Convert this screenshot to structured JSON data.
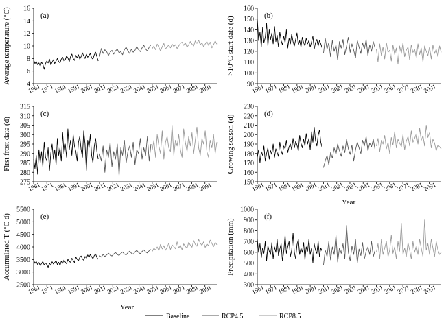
{
  "figure": {
    "x_title": "Year",
    "legend": [
      {
        "label": "Baseline",
        "color": "#000000"
      },
      {
        "label": "RCP4.5",
        "color": "#555555"
      },
      {
        "label": "RCP8.5",
        "color": "#999999"
      }
    ]
  },
  "chart_data": [
    {
      "type": "line",
      "panel_label": "(a)",
      "ylabel": "Average temperature (°C)",
      "xlabel": "",
      "x_tick_labels": [
        "1961",
        "1971",
        "1981",
        "1991",
        "2001",
        "2011",
        "2021",
        "2031",
        "2041",
        "2051",
        "2061",
        "2071",
        "2081",
        "2091"
      ],
      "y_ticks": [
        4,
        6,
        8,
        10,
        12,
        14,
        16
      ],
      "ylim": [
        4,
        16
      ],
      "xlim": [
        1961,
        2100
      ],
      "series": [
        {
          "name": "Baseline",
          "x_start": 1961,
          "x_end": 2010,
          "values": [
            7.8,
            7.2,
            7.5,
            7.0,
            7.3,
            6.8,
            7.4,
            7.1,
            6.3,
            7.2,
            7.6,
            7.3,
            7.9,
            7.0,
            7.4,
            7.8,
            7.2,
            7.6,
            8.0,
            7.5,
            7.3,
            7.9,
            8.2,
            7.6,
            7.8,
            8.4,
            8.1,
            7.5,
            8.3,
            8.7,
            8.0,
            7.7,
            8.5,
            8.1,
            8.6,
            7.9,
            8.3,
            8.9,
            8.4,
            8.0,
            8.7,
            8.2,
            8.5,
            8.8,
            8.1,
            7.9,
            8.6,
            9.0,
            8.3,
            7.6
          ]
        },
        {
          "name": "RCP4.5",
          "x_start": 2011,
          "x_end": 2050,
          "values": [
            8.3,
            9.6,
            8.8,
            9.4,
            9.1,
            8.5,
            9.0,
            9.3,
            8.7,
            9.2,
            9.5,
            8.9,
            9.1,
            8.6,
            9.4,
            9.8,
            9.2,
            8.8,
            9.5,
            9.0,
            9.3,
            9.9,
            9.4,
            9.1,
            9.7,
            10.1,
            9.5,
            9.2,
            9.8,
            10.2
          ]
        },
        {
          "name": "RCP8.5",
          "x_start": 2051,
          "x_end": 2100,
          "values": [
            9.6,
            10.0,
            9.4,
            10.3,
            9.8,
            9.2,
            9.9,
            10.4,
            9.5,
            9.9,
            10.1,
            9.7,
            10.3,
            9.9,
            10.2,
            9.6,
            10.0,
            10.4,
            10.6,
            10.1,
            10.5,
            9.8,
            10.2,
            10.7,
            10.3,
            10.0,
            10.8,
            10.4,
            10.9,
            10.2,
            10.5,
            9.9,
            10.3,
            10.7,
            10.1,
            10.6,
            9.7,
            10.2,
            10.8,
            10.3
          ]
        }
      ]
    },
    {
      "type": "line",
      "panel_label": "(b)",
      "ylabel": ">10°C start date (d)",
      "xlabel": "",
      "x_tick_labels": [
        "1961",
        "1971",
        "1981",
        "1991",
        "2001",
        "2011",
        "2021",
        "2031",
        "2041",
        "2051",
        "2061",
        "2071",
        "2081",
        "2091"
      ],
      "y_ticks": [
        90,
        100,
        110,
        120,
        130,
        140,
        150,
        160
      ],
      "ylim": [
        90,
        160
      ],
      "xlim": [
        1961,
        2100
      ],
      "series": [
        {
          "name": "Baseline",
          "x_start": 1961,
          "x_end": 2010,
          "values": [
            150,
            130,
            138,
            124,
            142,
            128,
            133,
            146,
            125,
            140,
            131,
            137,
            127,
            143,
            129,
            135,
            124,
            138,
            130,
            126,
            134,
            128,
            140,
            123,
            132,
            127,
            136,
            129,
            125,
            131,
            137,
            126,
            130,
            124,
            133,
            128,
            125,
            132,
            127,
            130,
            124,
            129,
            134,
            122,
            128,
            131,
            125,
            130,
            127,
            123
          ]
        },
        {
          "name": "RCP4.5",
          "x_start": 2011,
          "x_end": 2050,
          "values": [
            118,
            132,
            122,
            128,
            115,
            130,
            120,
            126,
            112,
            129,
            123,
            131,
            117,
            125,
            133,
            119,
            127,
            121,
            114,
            130,
            124,
            118,
            128,
            122,
            131,
            116,
            126,
            120,
            129,
            123
          ]
        },
        {
          "name": "RCP8.5",
          "x_start": 2051,
          "x_end": 2100,
          "values": [
            122,
            110,
            127,
            116,
            124,
            113,
            128,
            119,
            121,
            111,
            126,
            117,
            123,
            108,
            125,
            118,
            128,
            115,
            121,
            124,
            112,
            126,
            119,
            122,
            114,
            127,
            117,
            123,
            110,
            125,
            120,
            116,
            124,
            113,
            126,
            118,
            122,
            115,
            125,
            119
          ]
        }
      ]
    },
    {
      "type": "line",
      "panel_label": "(c)",
      "ylabel": "First frost date (d)",
      "xlabel": "",
      "x_tick_labels": [
        "1961",
        "1971",
        "1981",
        "1991",
        "2001",
        "2011",
        "2021",
        "2031",
        "2041",
        "2051",
        "2061",
        "2071",
        "2081",
        "2091"
      ],
      "y_ticks": [
        275,
        280,
        285,
        290,
        295,
        300,
        305,
        310,
        315
      ],
      "ylim": [
        275,
        315
      ],
      "xlim": [
        1961,
        2100
      ],
      "series": [
        {
          "name": "Baseline",
          "x_start": 1961,
          "x_end": 2010,
          "values": [
            287,
            282,
            289,
            279,
            292,
            285,
            291,
            283,
            296,
            288,
            286,
            293,
            281,
            290,
            295,
            287,
            292,
            284,
            298,
            289,
            293,
            286,
            301,
            290,
            295,
            288,
            303,
            292,
            297,
            289,
            300,
            294,
            291,
            286,
            296,
            299,
            292,
            288,
            302,
            295,
            281,
            297,
            293,
            300,
            289,
            285,
            294,
            298,
            291,
            287
          ]
        },
        {
          "name": "RCP4.5",
          "x_start": 2011,
          "x_end": 2050,
          "values": [
            290,
            286,
            294,
            280,
            292,
            288,
            296,
            283,
            291,
            287,
            295,
            278,
            293,
            289,
            297,
            285,
            291,
            294,
            288,
            296,
            284,
            292,
            290,
            298,
            287,
            293,
            289,
            299,
            286,
            295
          ]
        },
        {
          "name": "RCP8.5",
          "x_start": 2051,
          "x_end": 2100,
          "values": [
            292,
            297,
            288,
            300,
            294,
            290,
            302,
            287,
            296,
            299,
            293,
            291,
            305,
            289,
            297,
            294,
            300,
            292,
            288,
            303,
            296,
            291,
            299,
            294,
            301,
            290,
            297,
            304,
            293,
            289,
            298,
            295,
            302,
            291,
            288,
            297,
            293,
            300,
            290,
            296
          ]
        }
      ]
    },
    {
      "type": "line",
      "panel_label": "(d)",
      "ylabel": "Growing season (d)",
      "xlabel": "",
      "x_tick_labels": [
        "1961",
        "1971",
        "1981",
        "1991",
        "2001",
        "2011",
        "2021",
        "2031",
        "2041",
        "2051",
        "2061",
        "2071",
        "2081",
        "2091"
      ],
      "y_ticks": [
        150,
        160,
        170,
        180,
        190,
        200,
        210,
        220,
        230
      ],
      "ylim": [
        150,
        230
      ],
      "xlim": [
        1961,
        2100
      ],
      "series": [
        {
          "name": "Baseline",
          "x_start": 1961,
          "x_end": 2010,
          "values": [
            176,
            184,
            170,
            182,
            178,
            188,
            172,
            180,
            186,
            174,
            183,
            179,
            190,
            176,
            185,
            181,
            177,
            192,
            183,
            179,
            188,
            185,
            194,
            181,
            187,
            190,
            184,
            196,
            186,
            193,
            189,
            183,
            199,
            191,
            186,
            195,
            188,
            201,
            190,
            196,
            184,
            203,
            192,
            208,
            194,
            188,
            199,
            205,
            192,
            186
          ]
        },
        {
          "name": "RCP4.5",
          "x_start": 2011,
          "x_end": 2050,
          "values": [
            165,
            172,
            178,
            168,
            181,
            175,
            186,
            179,
            190,
            183,
            177,
            188,
            181,
            195,
            185,
            179,
            189,
            172,
            184,
            192,
            186,
            180,
            194,
            188,
            198,
            183,
            191,
            187,
            195,
            184
          ]
        },
        {
          "name": "RCP8.5",
          "x_start": 2051,
          "x_end": 2100,
          "values": [
            188,
            196,
            182,
            194,
            190,
            199,
            185,
            192,
            180,
            197,
            189,
            203,
            186,
            195,
            191,
            187,
            200,
            184,
            193,
            198,
            188,
            204,
            192,
            196,
            201,
            190,
            207,
            194,
            199,
            188,
            210,
            197,
            202,
            186,
            195,
            191,
            183,
            189,
            187,
            185
          ]
        }
      ]
    },
    {
      "type": "line",
      "panel_label": "(e)",
      "ylabel": "Accumulated T (°C d)",
      "xlabel": "",
      "x_tick_labels": [
        "1961",
        "1971",
        "1981",
        "1991",
        "2001",
        "2011",
        "2021",
        "2031",
        "2041",
        "2051",
        "2061",
        "2071",
        "2081",
        "2091"
      ],
      "y_ticks": [
        2500,
        3000,
        3500,
        4000,
        4500,
        5000,
        5500
      ],
      "ylim": [
        2500,
        5500
      ],
      "xlim": [
        1961,
        2100
      ],
      "series": [
        {
          "name": "Baseline",
          "x_start": 1961,
          "x_end": 2010,
          "values": [
            3480,
            3350,
            3420,
            3300,
            3380,
            3250,
            3340,
            3420,
            3280,
            3360,
            3300,
            3190,
            3350,
            3270,
            3410,
            3320,
            3380,
            3450,
            3300,
            3390,
            3260,
            3430,
            3350,
            3480,
            3400,
            3330,
            3510,
            3420,
            3390,
            3550,
            3460,
            3380,
            3600,
            3510,
            3450,
            3580,
            3640,
            3520,
            3470,
            3620,
            3550,
            3680,
            3590,
            3700,
            3610,
            3530,
            3660,
            3720,
            3580,
            3510
          ]
        },
        {
          "name": "RCP4.5",
          "x_start": 2011,
          "x_end": 2050,
          "values": [
            3650,
            3600,
            3700,
            3620,
            3680,
            3750,
            3690,
            3640,
            3720,
            3780,
            3700,
            3660,
            3740,
            3800,
            3720,
            3680,
            3770,
            3830,
            3750,
            3710,
            3800,
            3860,
            3780,
            3730,
            3820,
            3880,
            3800,
            3760,
            3850,
            3900
          ]
        },
        {
          "name": "RCP8.5",
          "x_start": 2051,
          "x_end": 2100,
          "values": [
            3820,
            3950,
            3880,
            4000,
            3850,
            4100,
            3920,
            4050,
            3870,
            3990,
            4150,
            3900,
            4080,
            4010,
            3930,
            4200,
            3960,
            4060,
            3890,
            4120,
            4020,
            3950,
            4180,
            4070,
            3990,
            4250,
            4100,
            4030,
            4300,
            4150,
            4060,
            4200,
            3980,
            4120,
            4050,
            4270,
            4140,
            4010,
            4180,
            4090
          ]
        }
      ]
    },
    {
      "type": "line",
      "panel_label": "(f)",
      "ylabel": "Precipitation (mm)",
      "xlabel": "",
      "x_tick_labels": [
        "1961",
        "1971",
        "1981",
        "1991",
        "2001",
        "2011",
        "2021",
        "2031",
        "2041",
        "2051",
        "2061",
        "2071",
        "2081",
        "2091"
      ],
      "y_ticks": [
        300,
        400,
        500,
        600,
        700,
        800,
        900,
        1000
      ],
      "ylim": [
        300,
        1000
      ],
      "xlim": [
        1961,
        2100
      ],
      "series": [
        {
          "name": "Baseline",
          "x_start": 1961,
          "x_end": 2010,
          "values": [
            720,
            600,
            680,
            550,
            640,
            590,
            700,
            520,
            660,
            610,
            580,
            690,
            540,
            650,
            600,
            720,
            570,
            630,
            680,
            520,
            610,
            760,
            590,
            650,
            700,
            560,
            620,
            780,
            600,
            540,
            670,
            720,
            580,
            640,
            600,
            690,
            530,
            650,
            610,
            720,
            580,
            640,
            500,
            680,
            620,
            590,
            700,
            560,
            640,
            610
          ]
        },
        {
          "name": "RCP4.5",
          "x_start": 2011,
          "x_end": 2050,
          "values": [
            480,
            620,
            560,
            700,
            530,
            650,
            580,
            760,
            510,
            640,
            590,
            680,
            540,
            850,
            600,
            520,
            660,
            580,
            720,
            500,
            630,
            570,
            690,
            540,
            610,
            650,
            580,
            700,
            560,
            620
          ]
        },
        {
          "name": "RCP8.5",
          "x_start": 2051,
          "x_end": 2100,
          "values": [
            600,
            680,
            540,
            720,
            580,
            640,
            700,
            560,
            620,
            760,
            590,
            650,
            540,
            700,
            610,
            870,
            580,
            640,
            560,
            690,
            620,
            540,
            700,
            600,
            660,
            580,
            720,
            640,
            560,
            900,
            620,
            680,
            580,
            720,
            640,
            560,
            700,
            620,
            580,
            600
          ]
        }
      ]
    }
  ]
}
